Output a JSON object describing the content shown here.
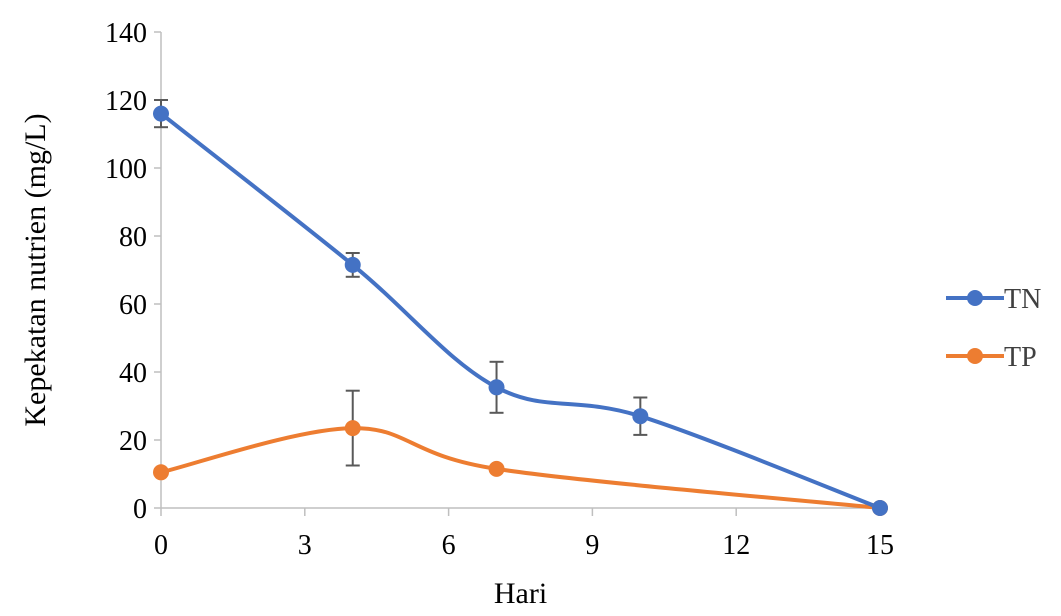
{
  "chart_data": {
    "type": "line",
    "title": "",
    "xlabel": "Hari",
    "ylabel": "Kepekatan nutrien (mg/L)",
    "xlim": [
      0,
      15
    ],
    "ylim": [
      0,
      140
    ],
    "xticks": [
      "0",
      "3",
      "6",
      "9",
      "12",
      "15"
    ],
    "yticks": [
      "0",
      "20",
      "40",
      "60",
      "80",
      "100",
      "120",
      "140"
    ],
    "grid": false,
    "legend_position": "right",
    "smooth": true,
    "series": [
      {
        "name": "TN",
        "color": "#4472c4",
        "x": [
          0,
          4,
          7,
          10,
          15
        ],
        "y": [
          116,
          71.5,
          35.5,
          27,
          0
        ],
        "error": [
          4,
          3.5,
          7.5,
          5.5,
          0
        ]
      },
      {
        "name": "TP",
        "color": "#ed7d31",
        "x": [
          0,
          4,
          7,
          15
        ],
        "y": [
          10.5,
          23.5,
          11.5,
          0
        ],
        "error": [
          0,
          11,
          0,
          0
        ]
      }
    ]
  }
}
